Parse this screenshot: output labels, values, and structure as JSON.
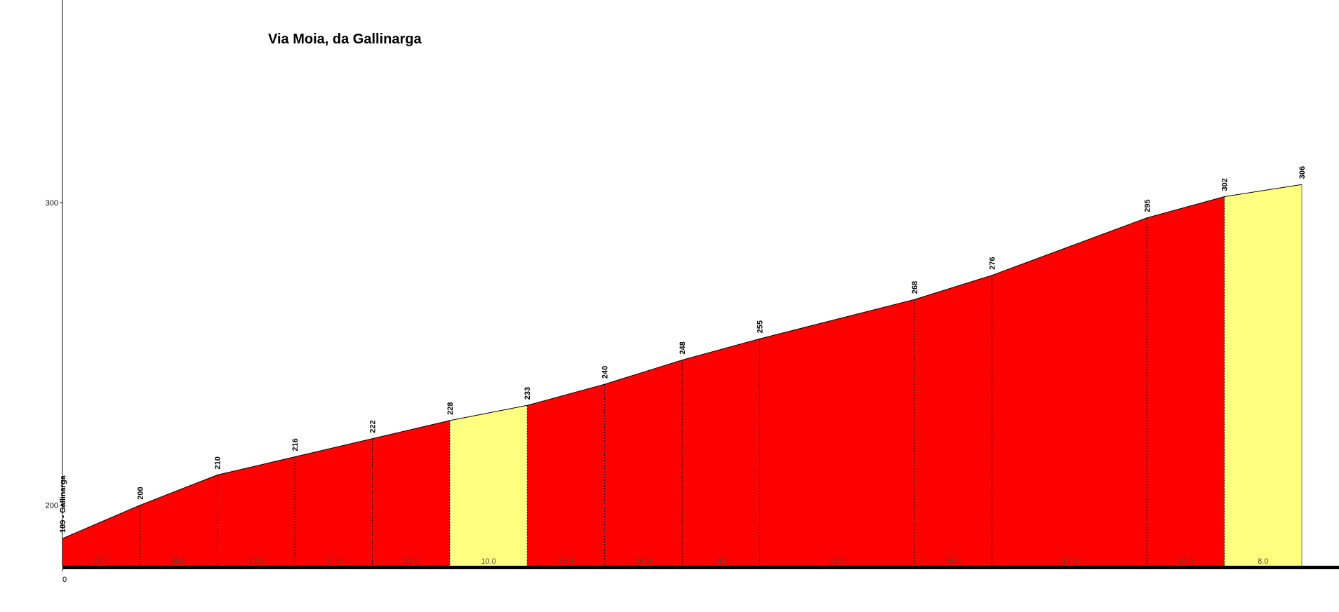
{
  "chart_data": {
    "type": "area",
    "title": "Via Moia, da Gallinarga",
    "x": [
      0,
      50,
      100,
      150,
      200,
      250,
      300,
      350,
      400,
      450,
      550,
      600,
      700,
      750,
      800
    ],
    "values": [
      189,
      200,
      210,
      216,
      222,
      228,
      233,
      240,
      248,
      255,
      268,
      276,
      295,
      302,
      306
    ],
    "value_labels": [
      "189 - Gallinarga",
      "200",
      "210",
      "216",
      "222",
      "228",
      "233",
      "240",
      "248",
      "255",
      "268",
      "276",
      "295",
      "302",
      "306"
    ],
    "segments": {
      "values": [
        22.0,
        20.0,
        12.0,
        12.0,
        12.0,
        10.0,
        14.0,
        16.0,
        14.0,
        13.0,
        16.0,
        19.0,
        14.0,
        8.0
      ],
      "value_labels": [
        "22.0",
        "20.0",
        "12.0",
        "12.0",
        "12.0",
        "10.0",
        "14.0",
        "16.0",
        "14.0",
        "13.0",
        "16.0",
        "19.0",
        "14.0",
        "8.0"
      ],
      "colors": [
        "#ff0000",
        "#ff0000",
        "#ff0000",
        "#ff0000",
        "#ff0000",
        "#ffff80",
        "#ff0000",
        "#ff0000",
        "#ff0000",
        "#ff0000",
        "#ff0000",
        "#ff0000",
        "#ff0000",
        "#ffff80"
      ]
    },
    "xlim": [
      0,
      824
    ],
    "xticks": [
      0
    ],
    "ylim": [
      180,
      367
    ],
    "yticks": [
      200,
      300
    ]
  }
}
